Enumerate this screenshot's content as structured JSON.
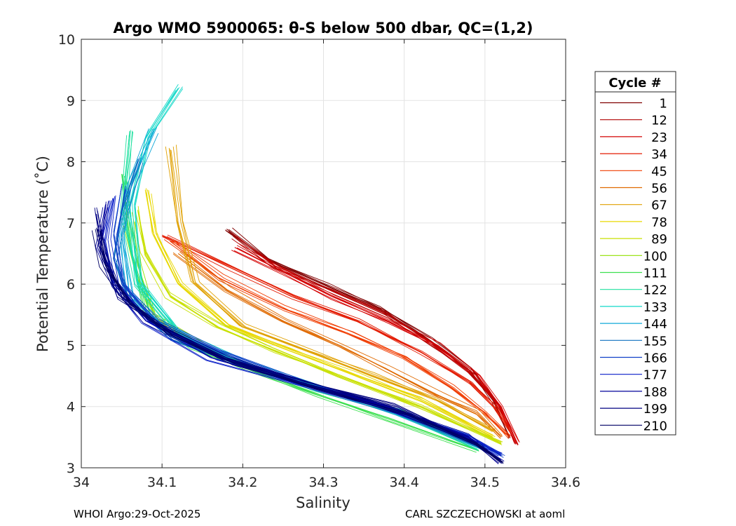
{
  "chart_data": {
    "type": "line",
    "title": "Argo WMO 5900065: θ-S below 500 dbar,  QC=(1,2)",
    "xlabel": "Salinity",
    "ylabel": "Potential Temperature (˚C)",
    "xlim": [
      34.0,
      34.6
    ],
    "ylim": [
      3,
      10
    ],
    "xticks": [
      "34",
      "34.1",
      "34.2",
      "34.3",
      "34.4",
      "34.5",
      "34.6"
    ],
    "yticks": [
      "3",
      "4",
      "5",
      "6",
      "7",
      "8",
      "9",
      "10"
    ],
    "grid": true,
    "legend_title": "Cycle #",
    "legend_position": "outside-right",
    "series": [
      {
        "name": "1",
        "color": "#800000",
        "x": [
          34.18,
          34.23,
          34.3,
          34.37,
          34.43,
          34.48,
          34.51,
          34.53
        ],
        "y": [
          6.9,
          6.4,
          6.0,
          5.6,
          5.1,
          4.6,
          4.1,
          3.5
        ]
      },
      {
        "name": "12",
        "color": "#b00000",
        "x": [
          34.19,
          34.24,
          34.31,
          34.38,
          34.44,
          34.48,
          34.52,
          34.54
        ],
        "y": [
          6.8,
          6.3,
          5.9,
          5.5,
          5.0,
          4.6,
          4.0,
          3.4
        ]
      },
      {
        "name": "23",
        "color": "#d40000",
        "x": [
          34.19,
          34.25,
          34.31,
          34.38,
          34.44,
          34.49,
          34.52,
          34.54
        ],
        "y": [
          6.6,
          6.2,
          5.8,
          5.4,
          5.0,
          4.5,
          4.0,
          3.4
        ]
      },
      {
        "name": "34",
        "color": "#e31a00",
        "x": [
          34.1,
          34.18,
          34.26,
          34.34,
          34.42,
          34.48,
          34.51,
          34.53
        ],
        "y": [
          6.8,
          6.3,
          5.8,
          5.4,
          4.9,
          4.4,
          4.0,
          3.6
        ]
      },
      {
        "name": "45",
        "color": "#f03c00",
        "x": [
          34.11,
          34.17,
          34.25,
          34.33,
          34.4,
          34.46,
          34.5,
          34.53
        ],
        "y": [
          6.7,
          6.1,
          5.6,
          5.2,
          4.8,
          4.3,
          3.9,
          3.5
        ]
      },
      {
        "name": "56",
        "color": "#e06a00",
        "x": [
          34.12,
          34.18,
          34.25,
          34.32,
          34.38,
          34.44,
          34.49,
          34.52
        ],
        "y": [
          6.5,
          5.9,
          5.4,
          5.0,
          4.6,
          4.2,
          3.9,
          3.5
        ]
      },
      {
        "name": "67",
        "color": "#e0a000",
        "x": [
          34.11,
          34.12,
          34.14,
          34.2,
          34.28,
          34.36,
          34.44,
          34.51
        ],
        "y": [
          8.2,
          7.0,
          6.0,
          5.3,
          4.9,
          4.5,
          4.1,
          3.6
        ]
      },
      {
        "name": "78",
        "color": "#e8d800",
        "x": [
          34.08,
          34.09,
          34.12,
          34.18,
          34.26,
          34.34,
          34.42,
          34.51
        ],
        "y": [
          7.5,
          6.8,
          6.0,
          5.3,
          4.9,
          4.5,
          4.1,
          3.5
        ]
      },
      {
        "name": "89",
        "color": "#c8e000",
        "x": [
          34.07,
          34.08,
          34.11,
          34.17,
          34.24,
          34.32,
          34.42,
          34.52
        ],
        "y": [
          7.2,
          6.5,
          5.8,
          5.3,
          4.9,
          4.5,
          4.0,
          3.4
        ]
      },
      {
        "name": "100",
        "color": "#90e000",
        "x": [
          34.06,
          34.07,
          34.09,
          34.15,
          34.22,
          34.3,
          34.4,
          34.5
        ],
        "y": [
          7.0,
          6.3,
          5.5,
          5.0,
          4.6,
          4.3,
          3.9,
          3.3
        ]
      },
      {
        "name": "111",
        "color": "#3de050",
        "x": [
          34.05,
          34.06,
          34.08,
          34.13,
          34.21,
          34.29,
          34.38,
          34.49
        ],
        "y": [
          7.8,
          6.6,
          5.5,
          5.0,
          4.6,
          4.2,
          3.8,
          3.3
        ]
      },
      {
        "name": "122",
        "color": "#20e0a0",
        "x": [
          34.06,
          34.05,
          34.07,
          34.12,
          34.2,
          34.29,
          34.39,
          34.49
        ],
        "y": [
          8.5,
          7.2,
          6.0,
          5.2,
          4.7,
          4.3,
          3.9,
          3.3
        ]
      },
      {
        "name": "133",
        "color": "#10d8c8",
        "x": [
          34.12,
          34.08,
          34.06,
          34.07,
          34.12,
          34.2,
          34.3,
          34.4,
          34.5
        ],
        "y": [
          9.2,
          8.4,
          7.3,
          6.0,
          5.2,
          4.7,
          4.3,
          3.9,
          3.3
        ]
      },
      {
        "name": "144",
        "color": "#10a8d8",
        "x": [
          34.09,
          34.06,
          34.05,
          34.06,
          34.11,
          34.19,
          34.29,
          34.39,
          34.5
        ],
        "y": [
          8.5,
          7.6,
          6.8,
          5.8,
          5.2,
          4.7,
          4.3,
          3.9,
          3.3
        ]
      },
      {
        "name": "155",
        "color": "#1070c0",
        "x": [
          34.07,
          34.05,
          34.04,
          34.06,
          34.11,
          34.19,
          34.29,
          34.39,
          34.5
        ],
        "y": [
          8.0,
          7.2,
          6.4,
          5.7,
          5.1,
          4.7,
          4.3,
          3.9,
          3.3
        ]
      },
      {
        "name": "166",
        "color": "#1040c8",
        "x": [
          34.05,
          34.04,
          34.05,
          34.09,
          34.17,
          34.27,
          34.37,
          34.48,
          34.52
        ],
        "y": [
          7.6,
          6.8,
          6.0,
          5.4,
          4.9,
          4.4,
          4.0,
          3.5,
          3.2
        ]
      },
      {
        "name": "177",
        "color": "#0a1ec8",
        "x": [
          34.04,
          34.03,
          34.04,
          34.08,
          34.16,
          34.26,
          34.37,
          34.48,
          34.52
        ],
        "y": [
          7.4,
          6.7,
          6.0,
          5.4,
          4.8,
          4.4,
          4.0,
          3.5,
          3.2
        ]
      },
      {
        "name": "188",
        "color": "#00009a",
        "x": [
          34.03,
          34.02,
          34.04,
          34.08,
          34.17,
          34.27,
          34.38,
          34.48,
          34.52
        ],
        "y": [
          7.3,
          6.6,
          6.0,
          5.4,
          4.8,
          4.4,
          4.0,
          3.5,
          3.1
        ]
      },
      {
        "name": "199",
        "color": "#000080",
        "x": [
          34.02,
          34.03,
          34.05,
          34.1,
          34.18,
          34.28,
          34.39,
          34.49,
          34.52
        ],
        "y": [
          7.2,
          6.5,
          5.8,
          5.3,
          4.8,
          4.4,
          4.0,
          3.4,
          3.1
        ]
      },
      {
        "name": "210",
        "color": "#000064",
        "x": [
          34.02,
          34.03,
          34.06,
          34.11,
          34.19,
          34.29,
          34.4,
          34.49,
          34.52
        ],
        "y": [
          6.9,
          6.3,
          5.7,
          5.2,
          4.7,
          4.3,
          3.9,
          3.4,
          3.1
        ]
      }
    ]
  },
  "footer": {
    "left": "WHOI Argo:29-Oct-2025",
    "right": "CARL SZCZECHOWSKI at aoml"
  }
}
